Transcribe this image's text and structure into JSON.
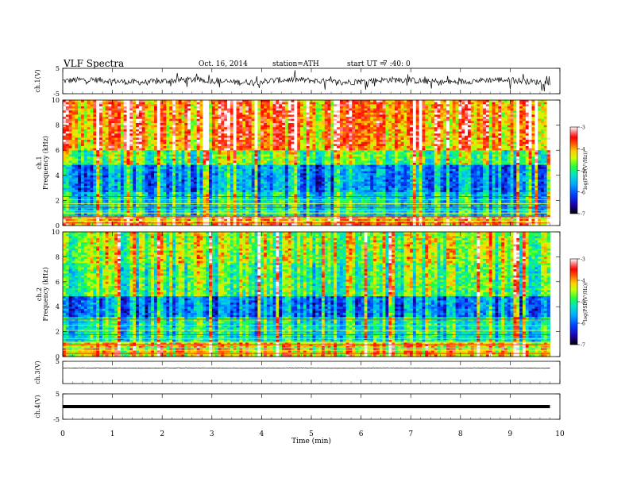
{
  "header": {
    "title": "VLF Spectra",
    "date": "Oct. 16, 2014",
    "station": "station=ATH",
    "start_label": "start UT =",
    "start_time": "7 :40: 0"
  },
  "chart_data": [
    {
      "type": "line",
      "ylabel": "ch.1(V)",
      "ylim": [
        -5,
        5
      ],
      "y_ticks": [
        "5",
        "-5"
      ],
      "description_values": {
        "baseline_y": 0,
        "noise_amplitude": 1.2
      }
    },
    {
      "type": "heatmap",
      "ylabel_channel": "ch.1",
      "ylabel": "Frequency (kHz)",
      "ylim": [
        0,
        10
      ],
      "y_ticks": [
        "0",
        "2",
        "4",
        "6",
        "8",
        "10"
      ],
      "colorbar_label": "log(PSD(V²/Hz))",
      "colorbar_ticks": [
        "-3",
        "-4",
        "-5",
        "-6",
        "-7"
      ],
      "colorbar_range": [
        -7,
        -3
      ]
    },
    {
      "type": "heatmap",
      "ylabel_channel": "ch.2",
      "ylabel": "Frequency (kHz)",
      "ylim": [
        0,
        10
      ],
      "y_ticks": [
        "0",
        "2",
        "4",
        "6",
        "8",
        "10"
      ],
      "colorbar_label": "log(PSD(V²/Hz))",
      "colorbar_ticks": [
        "-3",
        "-4",
        "-5",
        "-6",
        "-7"
      ],
      "colorbar_range": [
        -7,
        -3
      ]
    },
    {
      "type": "line",
      "ylabel": "ch.3(V)",
      "ylim": [
        -5,
        5
      ],
      "y_ticks": [
        "5"
      ],
      "description_values": {
        "baseline_y": 2.0,
        "noise_amplitude": 0.1
      }
    },
    {
      "type": "line",
      "ylabel": "ch.4(V)",
      "ylim": [
        -5,
        5
      ],
      "y_ticks": [
        "5",
        "-5"
      ],
      "description_values": {
        "baseline_y": 0,
        "noise_amplitude": 0.0
      }
    }
  ],
  "xaxis": {
    "label": "Time (min)",
    "ticks": [
      "0",
      "1",
      "2",
      "3",
      "4",
      "5",
      "6",
      "7",
      "8",
      "9",
      "10"
    ],
    "xlim": [
      0,
      10
    ],
    "data_end": 9.8
  }
}
